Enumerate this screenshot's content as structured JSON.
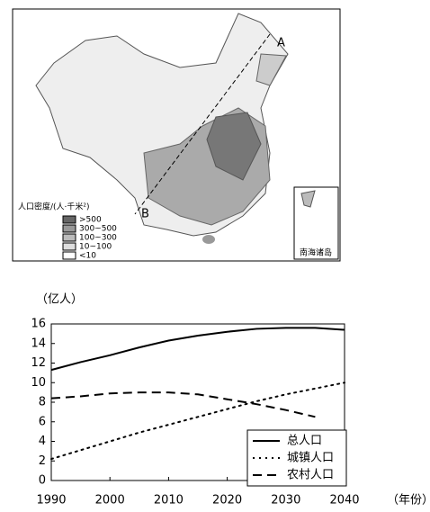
{
  "map": {
    "legend_title": "人口密度/(人·千米²)",
    "legend": [
      ">500",
      "300~500",
      "100~300",
      "10~100",
      "<10"
    ],
    "points": [
      "A",
      "B"
    ],
    "inset_label": "南海诸岛"
  },
  "chart_data": {
    "type": "line",
    "y_label": "（亿人）",
    "x_label": "（年份）",
    "x": [
      1990,
      1995,
      2000,
      2005,
      2010,
      2015,
      2020,
      2025,
      2030,
      2035,
      2040
    ],
    "series": [
      {
        "name": "总人口",
        "color": "#000000",
        "style": "solid",
        "values": [
          11.3,
          12.1,
          12.8,
          13.6,
          14.3,
          14.8,
          15.2,
          15.5,
          15.6,
          15.6,
          15.4
        ]
      },
      {
        "name": "城镇人口",
        "color": "#000000",
        "style": "dotted",
        "values": [
          2.2,
          3.1,
          4.0,
          4.9,
          5.7,
          6.5,
          7.3,
          8.1,
          8.8,
          9.4,
          10.0
        ]
      },
      {
        "name": "农村人口",
        "color": "#000000",
        "style": "dashed",
        "values": [
          8.4,
          8.6,
          8.9,
          9.0,
          9.0,
          8.8,
          8.3,
          7.8,
          7.2,
          6.5,
          null
        ]
      }
    ],
    "xlim": [
      1990,
      2040
    ],
    "xticks": [
      1990,
      2000,
      2010,
      2020,
      2030,
      2040
    ],
    "ylim": [
      0,
      16
    ],
    "yticks": [
      0,
      2,
      4,
      6,
      8,
      10,
      12,
      14,
      16
    ],
    "legend": "lower right"
  }
}
